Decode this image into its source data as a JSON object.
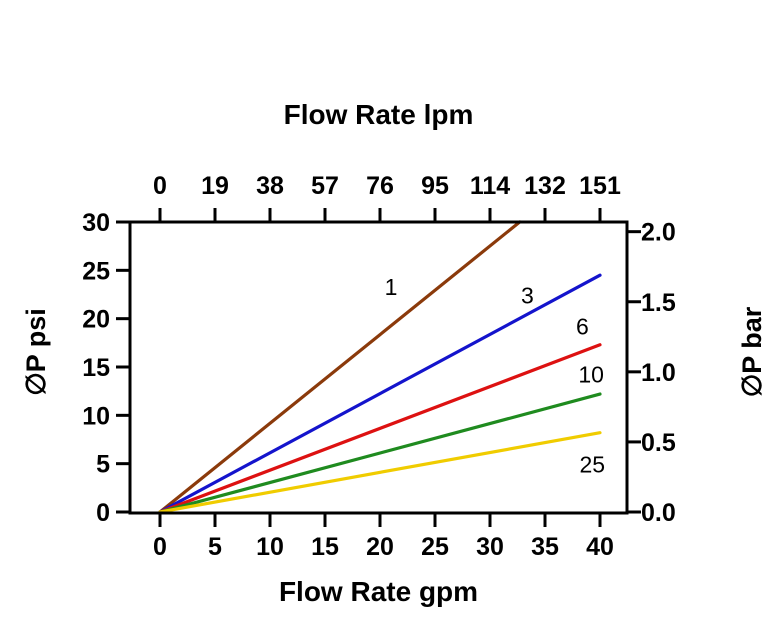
{
  "chart_data": {
    "type": "line",
    "top_axis_label": "Flow Rate lpm",
    "bottom_axis_label": "Flow Rate gpm",
    "left_axis_label": "∅P psi",
    "right_axis_label": "∅P bar",
    "xlim": [
      0,
      40
    ],
    "ylim_psi": [
      0,
      30
    ],
    "x_ticks_gpm": [
      0,
      5,
      10,
      15,
      20,
      25,
      30,
      35,
      40
    ],
    "x_ticks_lpm_labels": [
      "0",
      "19",
      "38",
      "57",
      "76",
      "95",
      "114",
      "132",
      "151"
    ],
    "y_ticks_psi": [
      0,
      5,
      10,
      15,
      20,
      25,
      30
    ],
    "y_ticks_bar": [
      "0.0",
      "0.5",
      "1.0",
      "1.5",
      "2.0"
    ],
    "psi_per_bar": 14.5,
    "grid": false,
    "legend_position": "inline-labels",
    "series": [
      {
        "name": "1",
        "color": "#8B3A0B",
        "points": [
          [
            0,
            0
          ],
          [
            32.7,
            30
          ]
        ],
        "label_at": [
          21.0,
          23.3
        ]
      },
      {
        "name": "3",
        "color": "#1414CC",
        "points": [
          [
            0,
            0
          ],
          [
            40,
            24.5
          ]
        ],
        "label_at": [
          33.4,
          22.4
        ]
      },
      {
        "name": "6",
        "color": "#DD1111",
        "points": [
          [
            0,
            0
          ],
          [
            40,
            17.3
          ]
        ],
        "label_at": [
          38.4,
          19.2
        ]
      },
      {
        "name": "10",
        "color": "#1F8B1F",
        "points": [
          [
            0,
            0
          ],
          [
            40,
            12.2
          ]
        ],
        "label_at": [
          39.2,
          14.2
        ]
      },
      {
        "name": "25",
        "color": "#F0CC00",
        "points": [
          [
            0,
            0
          ],
          [
            40,
            8.2
          ]
        ],
        "label_at": [
          39.3,
          4.9
        ]
      }
    ]
  }
}
